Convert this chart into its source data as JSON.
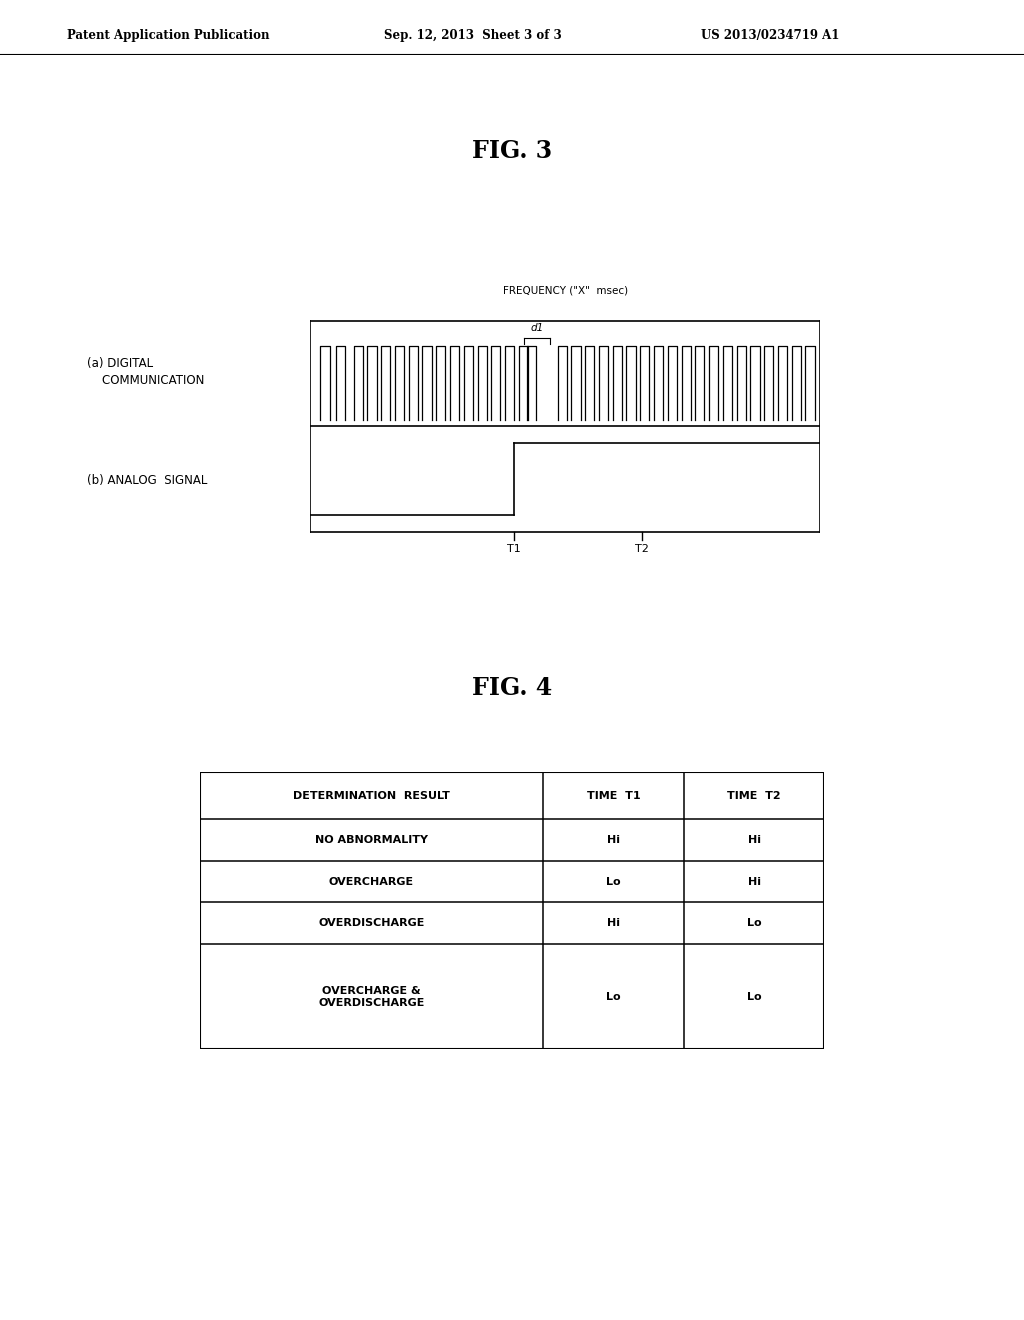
{
  "background_color": "#ffffff",
  "header_left": "Patent Application Publication",
  "header_center": "Sep. 12, 2013  Sheet 3 of 3",
  "header_right": "US 2013/0234719 A1",
  "fig3_title": "FIG. 3",
  "fig4_title": "FIG. 4",
  "freq_label": "FREQUENCY (\"X\"  msec)",
  "d1_label": "d1",
  "t1_label": "T1",
  "t2_label": "T2",
  "label_a": "(a) DIGITAL\n    COMMUNICATION",
  "label_b": "(b) ANALOG  SIGNAL",
  "table_headers": [
    "DETERMINATION  RESULT",
    "TIME  T1",
    "TIME  T2"
  ],
  "table_rows": [
    [
      "NO ABNORMALITY",
      "Hi",
      "Hi"
    ],
    [
      "OVERCHARGE",
      "Lo",
      "Hi"
    ],
    [
      "OVERDISCHARGE",
      "Hi",
      "Lo"
    ],
    [
      "OVERCHARGE &\nOVERDISCHARGE",
      "Lo",
      "Lo"
    ]
  ]
}
